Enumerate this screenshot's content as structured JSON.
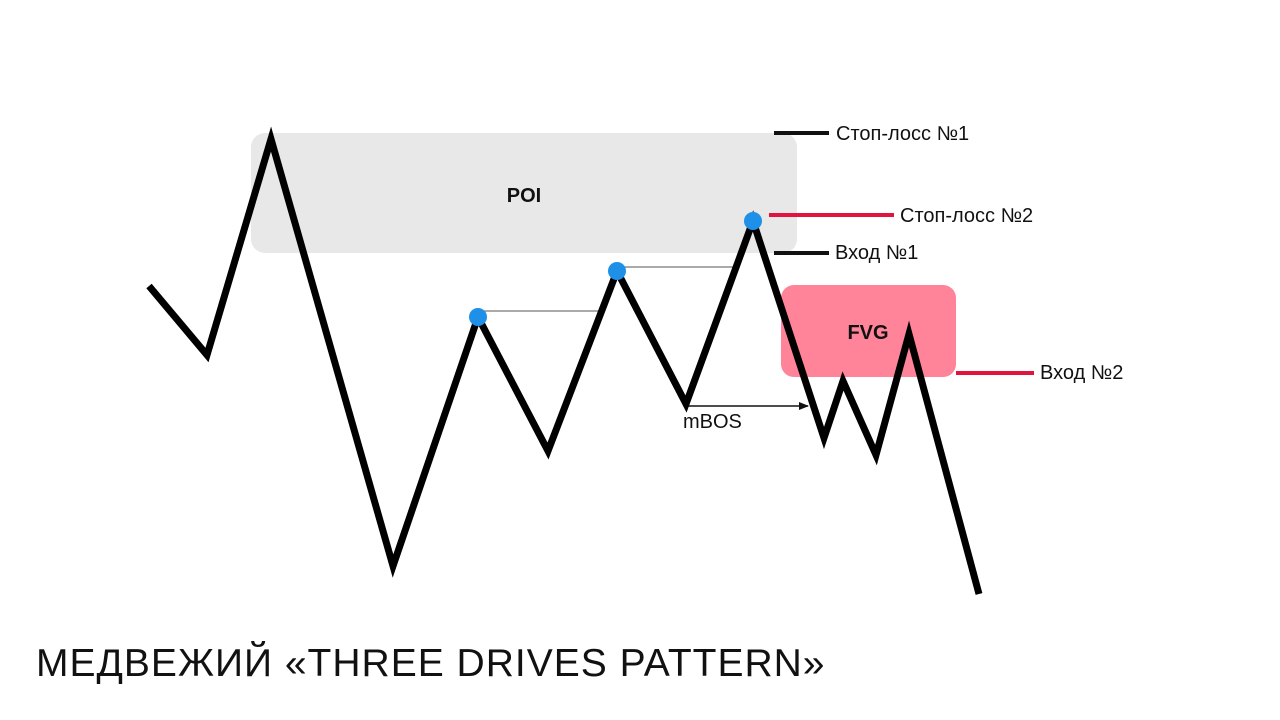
{
  "title": "МЕДВЕЖИЙ «THREE DRIVES PATTERN»",
  "zones": {
    "poi": {
      "label": "POI",
      "color": "#e8e8e8"
    },
    "fvg": {
      "label": "FVG",
      "color": "#ff8399"
    }
  },
  "levels": {
    "stop_loss_1": {
      "label": "Стоп-лосс №1",
      "color": "#111111"
    },
    "stop_loss_2": {
      "label": "Стоп-лосс №2",
      "color": "#e0143c"
    },
    "entry_1": {
      "label": "Вход №1",
      "color": "#111111"
    },
    "entry_2": {
      "label": "Вход №2",
      "color": "#e0143c"
    }
  },
  "annotations": {
    "mbos": "mBOS"
  },
  "colors": {
    "price_line": "#000000",
    "drive_marker": "#1e90e8",
    "background": "#ffffff"
  }
}
